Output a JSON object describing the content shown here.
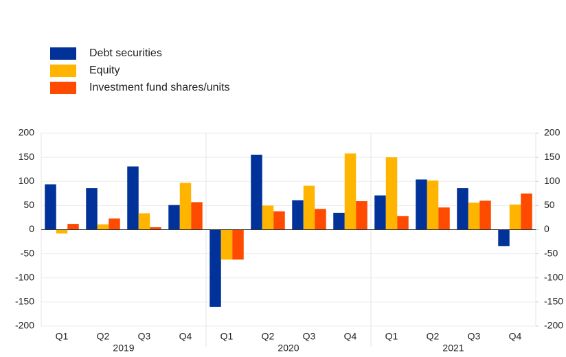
{
  "chart_data": {
    "type": "bar",
    "categories": [
      "Q1",
      "Q2",
      "Q3",
      "Q4",
      "Q1",
      "Q2",
      "Q3",
      "Q4",
      "Q1",
      "Q2",
      "Q3",
      "Q4"
    ],
    "groups": [
      "2019",
      "2020",
      "2021"
    ],
    "series": [
      {
        "name": "Debt securities",
        "color": "#003299",
        "values": [
          94,
          86,
          131,
          51,
          -160,
          155,
          61,
          35,
          71,
          104,
          86,
          -34
        ]
      },
      {
        "name": "Equity",
        "color": "#FFB400",
        "values": [
          -8,
          11,
          34,
          97,
          -62,
          50,
          91,
          158,
          150,
          102,
          56,
          52
        ]
      },
      {
        "name": "Investment fund shares/units",
        "color": "#FF4B00",
        "values": [
          12,
          23,
          5,
          57,
          -62,
          38,
          43,
          59,
          28,
          46,
          60,
          75
        ]
      }
    ],
    "ylim": [
      -200,
      200
    ],
    "yticks": [
      -200,
      -150,
      -100,
      -50,
      0,
      50,
      100,
      150,
      200
    ],
    "y2lim": [
      -200,
      200
    ],
    "y2ticks": [
      -200,
      -150,
      -100,
      -50,
      0,
      50,
      100,
      150,
      200
    ],
    "grid": true,
    "legend": "top-left"
  }
}
